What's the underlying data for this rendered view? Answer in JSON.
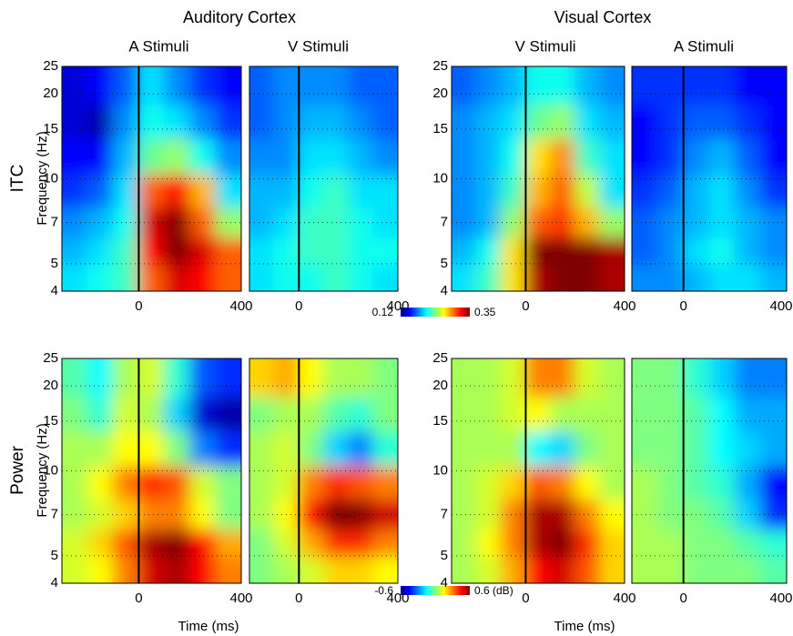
{
  "column_titles": [
    "Auditory Cortex",
    "Visual Cortex"
  ],
  "xlabel": "Time (ms)",
  "ylabel": "Frequency (Hz)",
  "rows": [
    {
      "label": "ITC",
      "zlim": [
        0.12,
        0.35
      ],
      "zticks": [
        0.12,
        0.35
      ]
    },
    {
      "label": "Power",
      "zlim": [
        -0.6,
        0.6
      ],
      "zticks": [
        -0.6,
        {
          "value": 0.6,
          "label": "0.6 (dB)"
        }
      ]
    }
  ],
  "chart_data": [
    {
      "type": "heatmap",
      "title": "A Stimuli",
      "colormap": "jet",
      "log_y": true,
      "vline": 0,
      "xlim": [
        -300,
        400
      ],
      "xticks": [
        0,
        400
      ],
      "ylim": [
        4,
        25
      ],
      "yticks": [
        4,
        5,
        7,
        10,
        15,
        20,
        25
      ],
      "x": [
        -250,
        -150,
        -50,
        50,
        150,
        250,
        350
      ],
      "y": [
        4.5,
        5.5,
        7,
        9,
        12,
        16,
        21
      ],
      "z": [
        [
          0.2,
          0.21,
          0.22,
          0.3,
          0.33,
          0.32,
          0.3
        ],
        [
          0.19,
          0.2,
          0.22,
          0.32,
          0.35,
          0.33,
          0.3
        ],
        [
          0.18,
          0.19,
          0.21,
          0.33,
          0.35,
          0.3,
          0.24
        ],
        [
          0.16,
          0.17,
          0.2,
          0.3,
          0.32,
          0.28,
          0.2
        ],
        [
          0.15,
          0.15,
          0.19,
          0.23,
          0.24,
          0.21,
          0.18
        ],
        [
          0.14,
          0.13,
          0.18,
          0.21,
          0.2,
          0.18,
          0.16
        ],
        [
          0.14,
          0.15,
          0.17,
          0.2,
          0.18,
          0.16,
          0.15
        ]
      ]
    },
    {
      "type": "heatmap",
      "title": "V Stimuli",
      "colormap": "jet",
      "log_y": true,
      "vline": 0,
      "xlim": [
        -200,
        400
      ],
      "xticks": [
        0,
        400
      ],
      "ylim": [
        4,
        25
      ],
      "yticks": [
        4,
        5,
        7,
        10,
        15,
        20,
        25
      ],
      "x": [
        -150,
        -50,
        50,
        150,
        250,
        350
      ],
      "y": [
        4.5,
        5.5,
        7,
        9,
        12,
        16,
        21
      ],
      "z": [
        [
          0.2,
          0.21,
          0.21,
          0.22,
          0.21,
          0.2
        ],
        [
          0.2,
          0.21,
          0.22,
          0.22,
          0.21,
          0.21
        ],
        [
          0.19,
          0.2,
          0.22,
          0.22,
          0.21,
          0.2
        ],
        [
          0.19,
          0.19,
          0.21,
          0.22,
          0.2,
          0.2
        ],
        [
          0.18,
          0.18,
          0.2,
          0.2,
          0.19,
          0.18
        ],
        [
          0.17,
          0.18,
          0.19,
          0.19,
          0.18,
          0.17
        ],
        [
          0.17,
          0.18,
          0.18,
          0.18,
          0.17,
          0.17
        ]
      ]
    },
    {
      "type": "heatmap",
      "title": "V Stimuli",
      "colormap": "jet",
      "log_y": true,
      "vline": 0,
      "xlim": [
        -300,
        400
      ],
      "xticks": [
        0,
        400
      ],
      "ylim": [
        4,
        25
      ],
      "yticks": [
        4,
        5,
        7,
        10,
        15,
        20,
        25
      ],
      "x": [
        -250,
        -150,
        -50,
        50,
        150,
        250,
        350
      ],
      "y": [
        4.5,
        5.5,
        7,
        9,
        12,
        16,
        21
      ],
      "z": [
        [
          0.2,
          0.22,
          0.27,
          0.34,
          0.35,
          0.35,
          0.34
        ],
        [
          0.19,
          0.21,
          0.27,
          0.35,
          0.35,
          0.35,
          0.34
        ],
        [
          0.18,
          0.19,
          0.24,
          0.3,
          0.31,
          0.28,
          0.24
        ],
        [
          0.18,
          0.19,
          0.22,
          0.28,
          0.3,
          0.25,
          0.2
        ],
        [
          0.18,
          0.19,
          0.21,
          0.27,
          0.29,
          0.22,
          0.2
        ],
        [
          0.18,
          0.19,
          0.2,
          0.23,
          0.24,
          0.2,
          0.19
        ],
        [
          0.17,
          0.18,
          0.19,
          0.21,
          0.21,
          0.19,
          0.18
        ]
      ]
    },
    {
      "type": "heatmap",
      "title": "A Stimuli",
      "colormap": "jet",
      "log_y": true,
      "vline": 0,
      "xlim": [
        -200,
        400
      ],
      "xticks": [
        0,
        400
      ],
      "ylim": [
        4,
        25
      ],
      "yticks": [
        4,
        5,
        7,
        10,
        15,
        20,
        25
      ],
      "x": [
        -150,
        -50,
        50,
        150,
        250,
        350
      ],
      "y": [
        4.5,
        5.5,
        7,
        9,
        12,
        16,
        21
      ],
      "z": [
        [
          0.18,
          0.18,
          0.19,
          0.2,
          0.2,
          0.19
        ],
        [
          0.17,
          0.18,
          0.2,
          0.21,
          0.19,
          0.18
        ],
        [
          0.17,
          0.18,
          0.19,
          0.2,
          0.19,
          0.18
        ],
        [
          0.16,
          0.17,
          0.19,
          0.2,
          0.18,
          0.16
        ],
        [
          0.15,
          0.16,
          0.18,
          0.19,
          0.17,
          0.15
        ],
        [
          0.15,
          0.16,
          0.17,
          0.17,
          0.16,
          0.15
        ],
        [
          0.16,
          0.16,
          0.16,
          0.16,
          0.15,
          0.15
        ]
      ]
    },
    {
      "type": "heatmap",
      "colormap": "jet",
      "log_y": true,
      "vline": 0,
      "xlim": [
        -300,
        400
      ],
      "xticks": [
        0,
        400
      ],
      "ylim": [
        4,
        25
      ],
      "yticks": [
        4,
        5,
        7,
        10,
        15,
        20,
        25
      ],
      "x": [
        -250,
        -150,
        -50,
        50,
        150,
        250,
        350
      ],
      "y": [
        4.5,
        5.5,
        7,
        9,
        12,
        16,
        21
      ],
      "z": [
        [
          0.1,
          0.15,
          0.3,
          0.5,
          0.55,
          0.45,
          0.3
        ],
        [
          0.1,
          0.2,
          0.35,
          0.55,
          0.6,
          0.45,
          0.25
        ],
        [
          0.05,
          0.1,
          0.2,
          0.3,
          0.3,
          0.15,
          0.0
        ],
        [
          0.05,
          0.15,
          0.3,
          0.4,
          0.35,
          0.1,
          0.0
        ],
        [
          0.05,
          0.05,
          0.15,
          0.15,
          0.0,
          -0.3,
          -0.4
        ],
        [
          0.0,
          -0.1,
          0.1,
          0.05,
          -0.2,
          -0.5,
          -0.55
        ],
        [
          -0.05,
          -0.15,
          0.05,
          0.1,
          -0.1,
          -0.35,
          -0.4
        ]
      ]
    },
    {
      "type": "heatmap",
      "colormap": "jet",
      "log_y": true,
      "vline": 0,
      "xlim": [
        -200,
        400
      ],
      "xticks": [
        0,
        400
      ],
      "ylim": [
        4,
        25
      ],
      "yticks": [
        4,
        5,
        7,
        10,
        15,
        20,
        25
      ],
      "x": [
        -150,
        -50,
        50,
        150,
        250,
        350
      ],
      "y": [
        4.5,
        5.5,
        7,
        9,
        12,
        16,
        21
      ],
      "z": [
        [
          0.0,
          0.05,
          0.1,
          0.2,
          0.2,
          0.15
        ],
        [
          0.0,
          0.1,
          0.25,
          0.4,
          0.4,
          0.3
        ],
        [
          0.05,
          0.15,
          0.45,
          0.6,
          0.6,
          0.5
        ],
        [
          0.05,
          0.1,
          0.3,
          0.4,
          0.35,
          0.3
        ],
        [
          0.05,
          0.1,
          0.0,
          -0.2,
          -0.3,
          -0.1
        ],
        [
          0.0,
          0.05,
          0.05,
          -0.05,
          -0.1,
          0.0
        ],
        [
          0.2,
          0.25,
          0.15,
          0.05,
          0.05,
          0.0
        ]
      ]
    },
    {
      "type": "heatmap",
      "colormap": "jet",
      "log_y": true,
      "vline": 0,
      "xlim": [
        -300,
        400
      ],
      "xticks": [
        0,
        400
      ],
      "ylim": [
        4,
        25
      ],
      "yticks": [
        4,
        5,
        7,
        10,
        15,
        20,
        25
      ],
      "x": [
        -250,
        -150,
        -50,
        50,
        150,
        250,
        350
      ],
      "y": [
        4.5,
        5.5,
        7,
        9,
        12,
        16,
        21
      ],
      "z": [
        [
          0.05,
          0.1,
          0.25,
          0.45,
          0.5,
          0.35,
          0.2
        ],
        [
          0.05,
          0.15,
          0.3,
          0.55,
          0.6,
          0.4,
          0.2
        ],
        [
          0.05,
          0.1,
          0.3,
          0.55,
          0.55,
          0.3,
          0.15
        ],
        [
          0.05,
          0.1,
          0.2,
          0.35,
          0.3,
          0.15,
          0.05
        ],
        [
          0.05,
          0.05,
          0.05,
          -0.15,
          -0.2,
          0.0,
          0.05
        ],
        [
          0.05,
          0.05,
          0.1,
          0.15,
          0.05,
          0.05,
          0.05
        ],
        [
          0.05,
          0.05,
          0.1,
          0.3,
          0.3,
          0.1,
          0.05
        ]
      ]
    },
    {
      "type": "heatmap",
      "colormap": "jet",
      "log_y": true,
      "vline": 0,
      "xlim": [
        -200,
        400
      ],
      "xticks": [
        0,
        400
      ],
      "ylim": [
        4,
        25
      ],
      "yticks": [
        4,
        5,
        7,
        10,
        15,
        20,
        25
      ],
      "x": [
        -150,
        -50,
        50,
        150,
        250,
        350
      ],
      "y": [
        4.5,
        5.5,
        7,
        9,
        12,
        16,
        21
      ],
      "z": [
        [
          0.05,
          0.05,
          0.0,
          0.0,
          0.0,
          -0.05
        ],
        [
          0.05,
          0.05,
          0.0,
          0.0,
          -0.05,
          -0.1
        ],
        [
          0.05,
          0.0,
          0.0,
          -0.05,
          -0.2,
          -0.4
        ],
        [
          0.05,
          0.0,
          -0.05,
          -0.1,
          -0.25,
          -0.45
        ],
        [
          0.0,
          0.0,
          -0.05,
          -0.15,
          -0.2,
          -0.25
        ],
        [
          0.0,
          0.0,
          -0.05,
          -0.15,
          -0.25,
          -0.25
        ],
        [
          0.0,
          0.0,
          -0.1,
          -0.2,
          -0.3,
          -0.3
        ]
      ]
    }
  ]
}
